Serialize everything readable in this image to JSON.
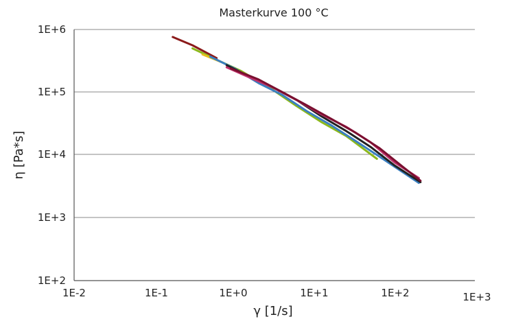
{
  "chart_data": {
    "type": "line",
    "title": "Masterkurve 100 °C",
    "xlabel": "γ [1/s]",
    "ylabel": "η [Pa*s]",
    "xscale": "log",
    "yscale": "log",
    "xlim": [
      0.01,
      1000
    ],
    "ylim": [
      100,
      1000000
    ],
    "xticks": [
      "1E-2",
      "1E-1",
      "1E+0",
      "1E+1",
      "1E+2",
      "1E+3"
    ],
    "yticks": [
      "1E+2",
      "1E+3",
      "1E+4",
      "1E+5",
      "1E+6"
    ],
    "grid": "horizontal",
    "legend": "none",
    "series": [
      {
        "color": "#8b1a1a",
        "x": [
          0.17,
          0.3,
          0.6
        ],
        "y": [
          760000,
          560000,
          350000
        ]
      },
      {
        "color": "#8cb81c",
        "x": [
          0.3,
          0.6,
          1.2,
          3,
          6,
          12,
          25,
          60
        ],
        "y": [
          500000,
          330000,
          220000,
          110000,
          60000,
          34000,
          20000,
          8700
        ]
      },
      {
        "color": "#e8c020",
        "x": [
          0.4,
          0.7
        ],
        "y": [
          400000,
          300000
        ]
      },
      {
        "color": "#3a7fc0",
        "x": [
          0.5,
          1,
          2,
          4,
          8,
          16,
          32,
          64,
          200
        ],
        "y": [
          370000,
          240000,
          140000,
          90000,
          50000,
          30000,
          17000,
          9500,
          3600
        ]
      },
      {
        "color": "#222222",
        "x": [
          0.8,
          1.5,
          3,
          6,
          12,
          25,
          50,
          100,
          210
        ],
        "y": [
          270000,
          180000,
          120000,
          75000,
          42000,
          24000,
          13500,
          6800,
          3700
        ]
      },
      {
        "color": "#c0306a",
        "x": [
          0.8,
          1.5,
          3,
          6,
          12,
          25,
          50,
          100,
          200
        ],
        "y": [
          250000,
          175000,
          120000,
          75000,
          45000,
          28000,
          16000,
          7600,
          4300
        ]
      },
      {
        "color": "#7a1030",
        "x": [
          0.9,
          2,
          4,
          8,
          16,
          32,
          64,
          128,
          210
        ],
        "y": [
          240000,
          160000,
          100000,
          62000,
          38000,
          23000,
          13000,
          6400,
          3900
        ]
      }
    ]
  }
}
